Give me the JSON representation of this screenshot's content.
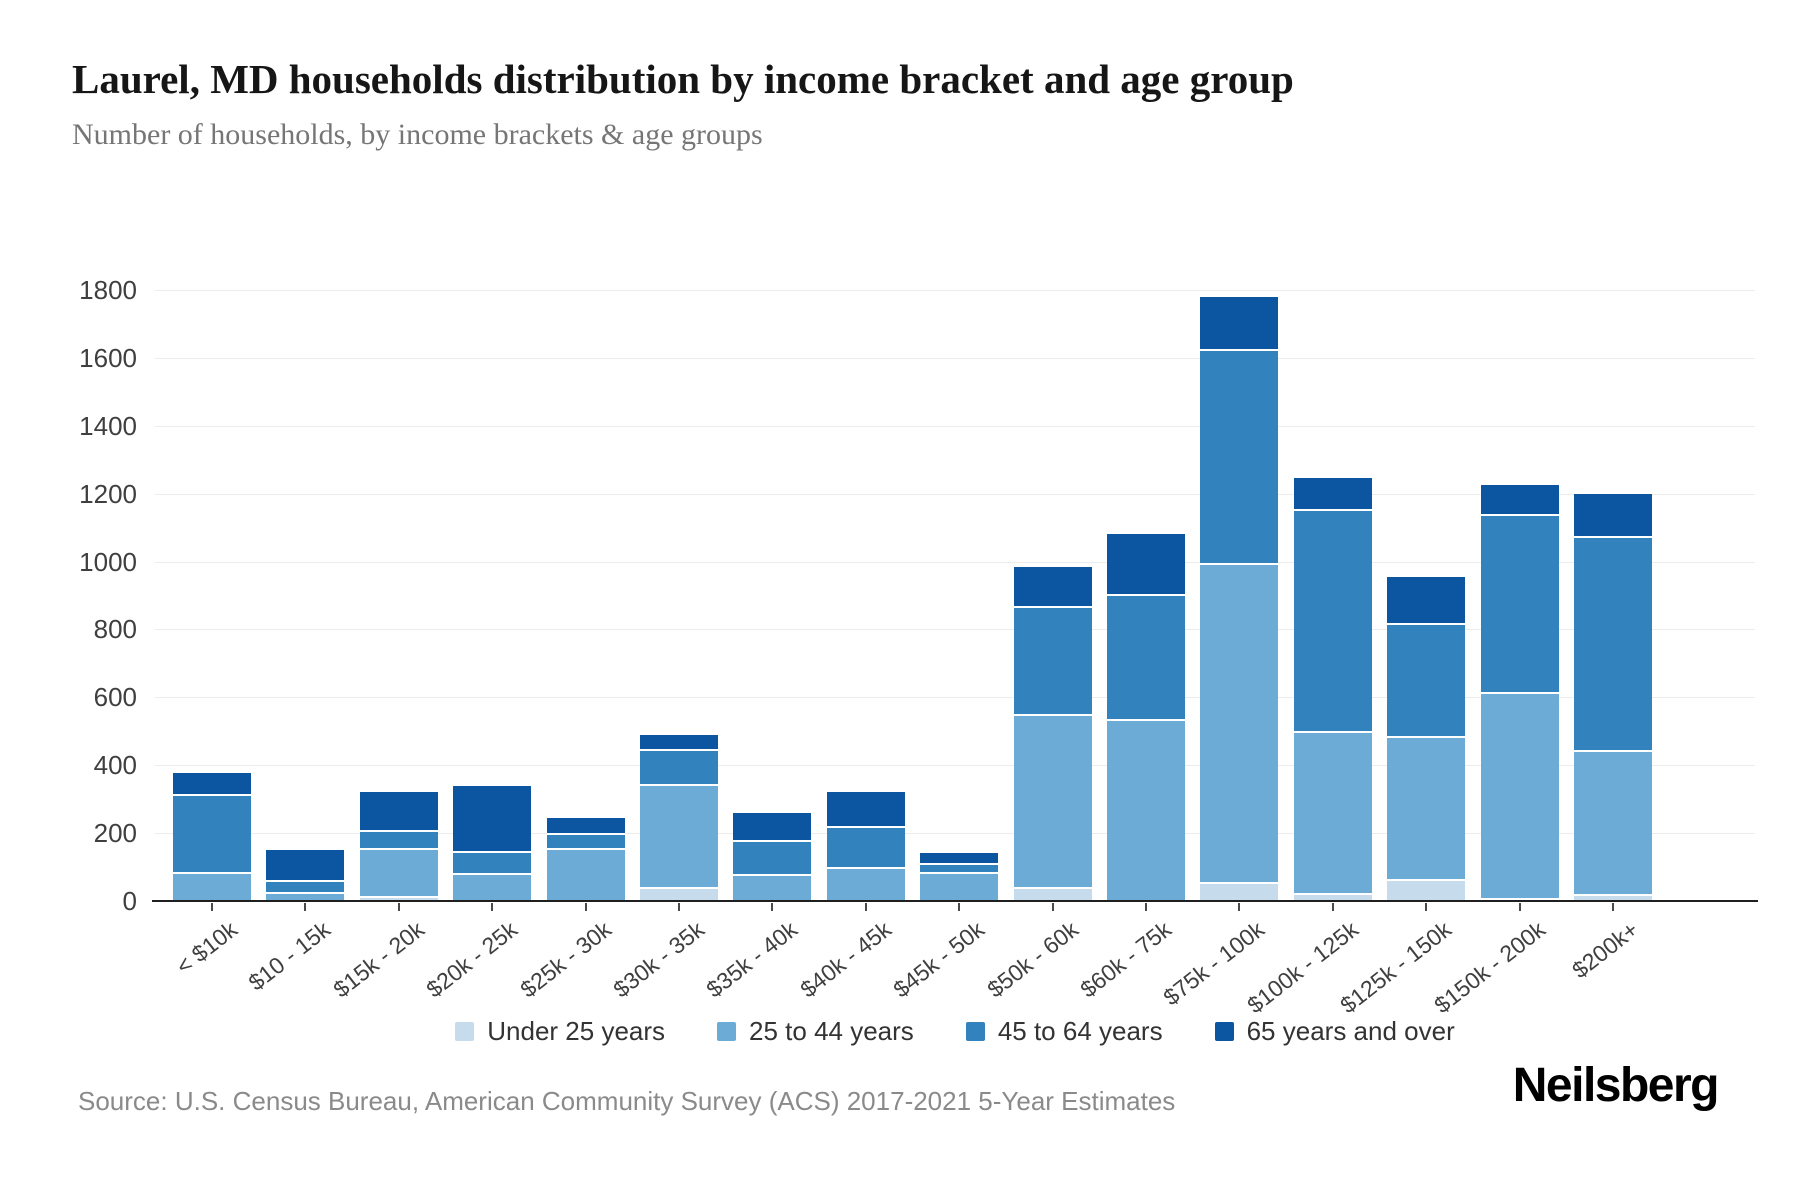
{
  "page": {
    "title": "Laurel, MD households distribution by income bracket and age group",
    "subtitle": "Number of households, by income brackets & age groups",
    "source": "Source: U.S. Census Bureau, American Community Survey (ACS) 2017-2021 5-Year Estimates",
    "brand": "Neilsberg"
  },
  "colors": {
    "under_25": "#c6dbec",
    "age_25_44": "#6babd6",
    "age_45_64": "#3182bd",
    "age_65_over": "#0b55a1",
    "axis": "#1f1f1f",
    "gridline": "#ececec",
    "tick_label": "#3f3f3f"
  },
  "chart_data": {
    "type": "bar",
    "stacked": true,
    "grid": true,
    "legend_position": "bottom",
    "title": "Laurel, MD households distribution by income bracket and age group",
    "xlabel": "",
    "ylabel": "Number of households",
    "ylim": [
      0,
      1800
    ],
    "ytick_step": 200,
    "categories": [
      "< $10k",
      "$10 - 15k",
      "$15k - 20k",
      "$20k - 25k",
      "$25k - 30k",
      "$30k - 35k",
      "$35k - 40k",
      "$40k - 45k",
      "$45k - 50k",
      "$50k - 60k",
      "$60k - 75k",
      "$75k - 100k",
      "$100k - 125k",
      "$125k - 150k",
      "$150k - 200k",
      "$200k+"
    ],
    "series": [
      {
        "name": "Under 25 years",
        "color": "#c6dbec",
        "values": [
          0,
          0,
          15,
          0,
          0,
          42,
          0,
          0,
          0,
          40,
          0,
          55,
          25,
          65,
          10,
          20
        ]
      },
      {
        "name": "25 to 44 years",
        "color": "#6babd6",
        "values": [
          85,
          27,
          142,
          82,
          155,
          304,
          80,
          100,
          84,
          510,
          535,
          940,
          475,
          420,
          605,
          425
        ]
      },
      {
        "name": "45 to 64 years",
        "color": "#3182bd",
        "values": [
          230,
          36,
          51,
          64,
          45,
          103,
          100,
          121,
          27,
          320,
          370,
          630,
          655,
          335,
          525,
          630
        ]
      },
      {
        "name": "65 years and over",
        "color": "#0b55a1",
        "values": [
          62,
          87,
          112,
          193,
          45,
          39,
          79,
          100,
          29,
          115,
          175,
          155,
          90,
          135,
          85,
          125
        ]
      }
    ]
  }
}
